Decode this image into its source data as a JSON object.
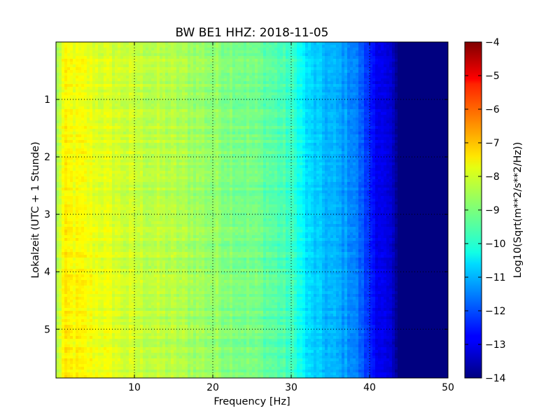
{
  "chart_data": {
    "type": "heatmap",
    "title": "BW BE1 HHZ: 2018-11-05",
    "xlabel": "Frequency [Hz]",
    "ylabel": "Lokalzeit (UTC + 1 Stunde)",
    "xlim": [
      0,
      50
    ],
    "ylim": [
      5.85,
      0
    ],
    "x_ticks": [
      10,
      20,
      30,
      40,
      50
    ],
    "x_tick_labels": [
      "10",
      "20",
      "30",
      "40",
      "50"
    ],
    "y_ticks": [
      1,
      2,
      3,
      4,
      5
    ],
    "y_tick_labels": [
      "1",
      "2",
      "3",
      "4",
      "5"
    ],
    "grid": true,
    "colormap": "jet",
    "colorbar": {
      "label": "Log10(Sqrt(m**2/s**2/Hz))",
      "range": [
        -14,
        -4
      ],
      "ticks": [
        -4,
        -5,
        -6,
        -7,
        -8,
        -9,
        -10,
        -11,
        -12,
        -13,
        -14
      ],
      "tick_labels": [
        "−4",
        "−5",
        "−6",
        "−7",
        "−8",
        "−9",
        "−10",
        "−11",
        "−12",
        "−13",
        "−14"
      ]
    },
    "frequency_profile": {
      "frequency_hz": [
        0,
        1,
        3,
        6,
        10,
        15,
        20,
        25,
        28,
        30,
        31,
        32,
        34,
        36,
        38,
        39,
        40,
        41,
        42,
        43,
        43.5,
        45,
        50
      ],
      "log10_amplitude": [
        -8.8,
        -7.8,
        -7.9,
        -8.1,
        -8.3,
        -8.5,
        -8.8,
        -9.1,
        -9.4,
        -9.7,
        -10.0,
        -10.6,
        -10.9,
        -11.1,
        -11.4,
        -11.9,
        -12.4,
        -12.8,
        -13.1,
        -13.4,
        -14.0,
        -14.0,
        -14.0
      ]
    }
  }
}
